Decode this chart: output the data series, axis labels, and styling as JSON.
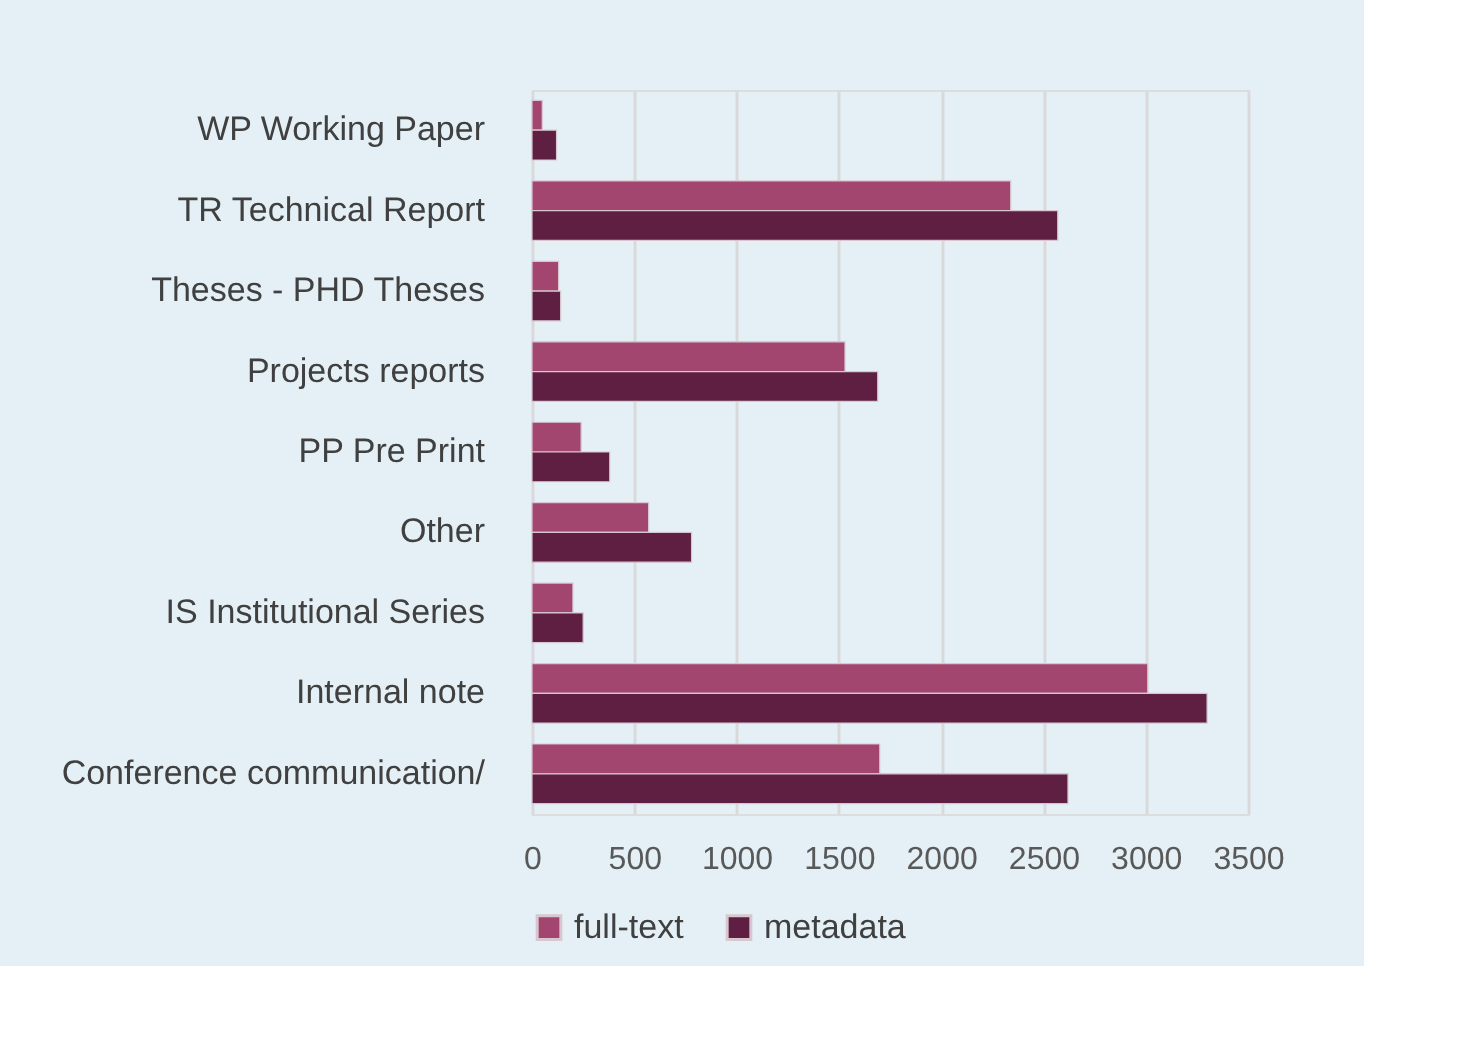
{
  "chart_data": {
    "type": "bar",
    "orientation": "horizontal",
    "categories": [
      "WP Working Paper",
      "TR Technical Report",
      "Theses - PHD Theses",
      "Projects reports",
      "PP Pre Print",
      "Other",
      "IS Institutional Series",
      "Internal note",
      "Conference communication/"
    ],
    "series": [
      {
        "name": "full-text",
        "color": "#a3466f",
        "values": [
          50,
          2340,
          130,
          1530,
          240,
          570,
          200,
          3010,
          1700
        ]
      },
      {
        "name": "metadata",
        "color": "#5e1f42",
        "values": [
          120,
          2570,
          140,
          1690,
          380,
          780,
          250,
          3300,
          2620
        ]
      }
    ],
    "xlim": [
      0,
      3500
    ],
    "xticks": [
      0,
      500,
      1000,
      1500,
      2000,
      2500,
      3000,
      3500
    ],
    "grid": "x",
    "legend": "bottom"
  }
}
